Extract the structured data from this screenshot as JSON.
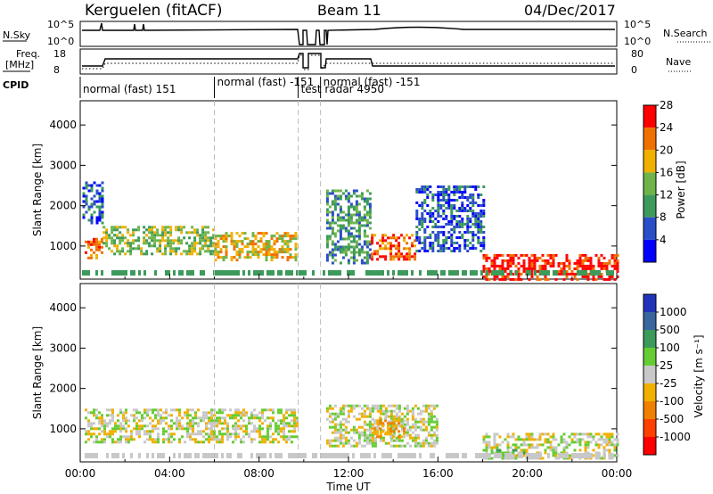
{
  "header": {
    "station": "Kerguelen (fitACF)",
    "beam": "Beam 11",
    "date": "04/Dec/2017"
  },
  "panel_labels": {
    "nsky": "N.Sky",
    "nsky_ticks": [
      "10^5",
      "10^0"
    ],
    "nsearch": "N.Search",
    "nsearch_ticks": [
      "10^5",
      "10^0"
    ],
    "freq_line1": "Freq.",
    "freq_line2": "[MHz]",
    "freq_ticks": [
      "18",
      "8"
    ],
    "nave": "Nave",
    "nave_ticks": [
      "80",
      "0"
    ],
    "cpid": "CPID"
  },
  "cpid_segments": [
    {
      "label": "normal (fast) 151",
      "start_h": 0.0,
      "end_h": 6.0
    },
    {
      "label": "normal (fast) -151",
      "start_h": 6.0,
      "end_h": 9.75
    },
    {
      "label": "test radar 4950",
      "start_h": 9.75,
      "end_h": 10.75
    },
    {
      "label": "normal (fast) -151",
      "start_h": 10.75,
      "end_h": 24.0
    }
  ],
  "chart_data": [
    {
      "type": "heatmap",
      "name": "power",
      "ylabel": "Slant Range [km]",
      "yticks": [
        "1000",
        "2000",
        "3000",
        "4000"
      ],
      "ylim": [
        180,
        4600
      ],
      "xlim": [
        0,
        24
      ],
      "colorbar_label": "Power [dB]",
      "colorbar_ticks": [
        "4",
        "8",
        "12",
        "16",
        "20",
        "24",
        "28"
      ],
      "colors": [
        "#0000ff",
        "#2a4ec8",
        "#3c9a5a",
        "#6fb44a",
        "#f0b000",
        "#f07000",
        "#ff0000"
      ],
      "echo_regions": [
        {
          "x0": 0.2,
          "x1": 1.0,
          "y0": 700,
          "y1": 1200,
          "level": 5
        },
        {
          "x0": 1.0,
          "x1": 6.0,
          "y0": 800,
          "y1": 1500,
          "level": 3
        },
        {
          "x0": 6.0,
          "x1": 9.7,
          "y0": 650,
          "y1": 1350,
          "level": 4
        },
        {
          "x0": 0.1,
          "x1": 1.0,
          "y0": 1600,
          "y1": 2600,
          "level": 1
        },
        {
          "x0": 11.0,
          "x1": 13.0,
          "y0": 600,
          "y1": 2400,
          "level": 2
        },
        {
          "x0": 13.0,
          "x1": 15.0,
          "y0": 700,
          "y1": 1300,
          "level": 5
        },
        {
          "x0": 15.0,
          "x1": 18.0,
          "y0": 900,
          "y1": 2500,
          "level": 1
        },
        {
          "x0": 18.0,
          "x1": 24.0,
          "y0": 180,
          "y1": 800,
          "level": 6
        }
      ]
    },
    {
      "type": "heatmap",
      "name": "velocity",
      "ylabel": "Slant Range [km]",
      "yticks": [
        "1000",
        "2000",
        "3000",
        "4000"
      ],
      "ylim": [
        180,
        4600
      ],
      "xlim": [
        0,
        24
      ],
      "xlabel": "Time UT",
      "xticks": [
        "00:00",
        "04:00",
        "08:00",
        "12:00",
        "16:00",
        "20:00",
        "00:00"
      ],
      "colorbar_label": "Velocity [m s⁻¹]",
      "colorbar_ticks": [
        "1000",
        "500",
        "100",
        "25",
        "-25",
        "-100",
        "-500",
        "-1000"
      ],
      "colors": [
        "#2233bb",
        "#3a66a0",
        "#3c9a5a",
        "#66cc33",
        "#c8c8c8",
        "#f0b000",
        "#f08000",
        "#ff4000",
        "#ff0000"
      ],
      "echo_regions": [
        {
          "x0": 0.2,
          "x1": 9.7,
          "y0": 700,
          "y1": 1500,
          "level": 4
        },
        {
          "x0": 11.0,
          "x1": 16.0,
          "y0": 600,
          "y1": 1600,
          "level": 4
        },
        {
          "x0": 13.0,
          "x1": 14.5,
          "y0": 800,
          "y1": 1300,
          "level": 5
        },
        {
          "x0": 18.0,
          "x1": 24.0,
          "y0": 250,
          "y1": 900,
          "level": 4
        },
        {
          "x0": 18.0,
          "x1": 20.0,
          "y0": 250,
          "y1": 500,
          "level": 3
        }
      ]
    }
  ]
}
